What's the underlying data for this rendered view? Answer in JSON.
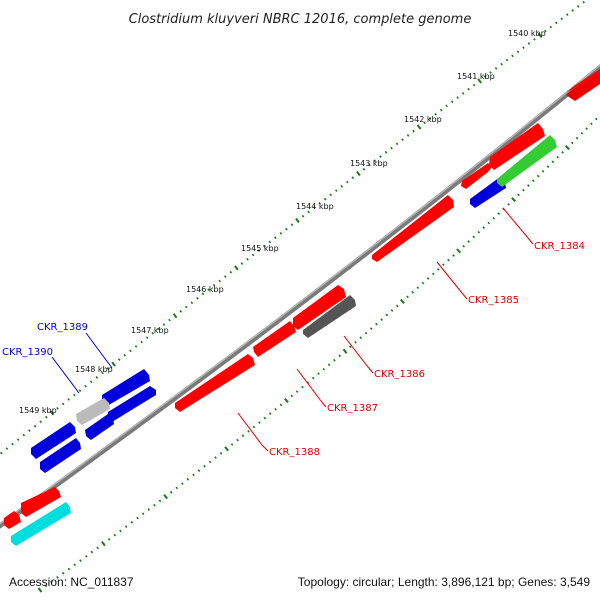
{
  "title": "Clostridium kluyveri NBRC 12016, complete genome",
  "accession": "Accession: NC_011837",
  "summary": "Topology: circular; Length: 3,896,121 bp; Genes: 3,549",
  "colors": {
    "backbone": "#888888",
    "tick": "#1a7a1a",
    "forward": "#ff0000",
    "reverse_blue": "#0000dd",
    "grey": "#555555",
    "light_grey": "#bbbbbb",
    "green": "#33cc33",
    "cyan": "#00dddd",
    "label_red": "#dd0000",
    "label_blue": "#0000cc"
  },
  "ticks": [
    {
      "label": "1540 kbp"
    },
    {
      "label": "1541 kbp"
    },
    {
      "label": "1542 kbp"
    },
    {
      "label": "1543 kbp"
    },
    {
      "label": "1544 kbp"
    },
    {
      "label": "1545 kbp"
    },
    {
      "label": "1546 kbp"
    },
    {
      "label": "1547 kbp"
    },
    {
      "label": "1548 kbp"
    },
    {
      "label": "1549 kbp"
    }
  ],
  "gene_labels": [
    {
      "text": "CKR_1384",
      "color": "red"
    },
    {
      "text": "CKR_1385",
      "color": "red"
    },
    {
      "text": "CKR_1386",
      "color": "red"
    },
    {
      "text": "CKR_1387",
      "color": "red"
    },
    {
      "text": "CKR_1388",
      "color": "red"
    },
    {
      "text": "CKR_1389",
      "color": "blue"
    },
    {
      "text": "CKR_1390",
      "color": "blue"
    }
  ]
}
